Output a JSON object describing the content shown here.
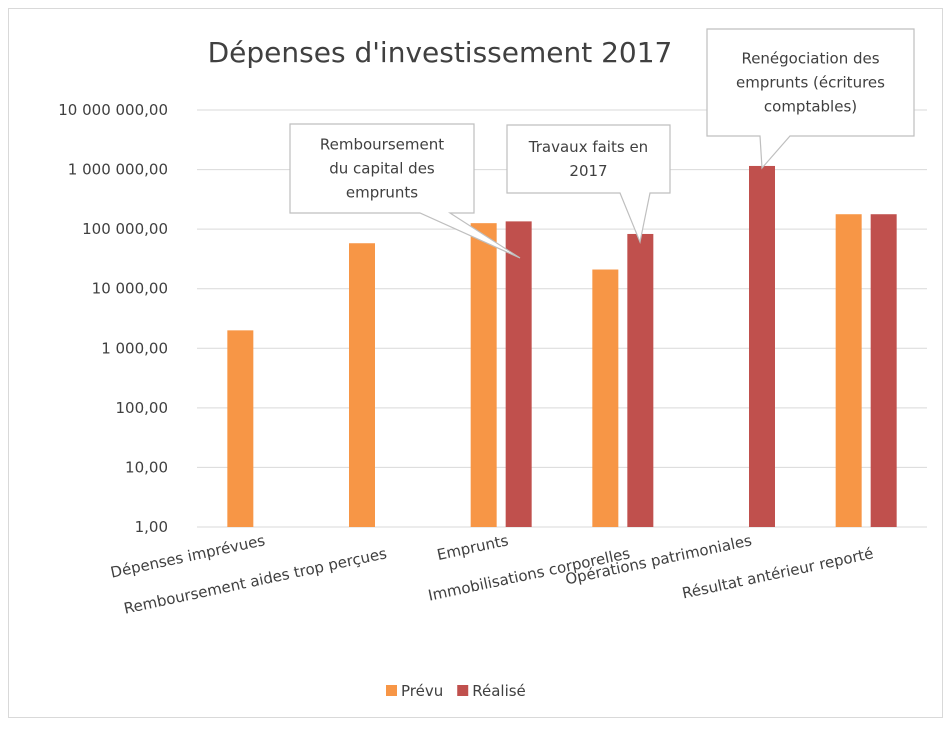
{
  "chart_data": {
    "type": "bar",
    "title": "Dépenses d'investissement 2017",
    "log_scale": true,
    "categories": [
      "Dépenses imprévues",
      "Remboursement aides trop perçues",
      "Emprunts",
      "Immobilisations corporelles",
      "Opérations patrimoniales",
      "Résultat antérieur reporté"
    ],
    "series": [
      {
        "name": "Prévu",
        "color": "#f79646",
        "values": [
          2000,
          58000,
          126000,
          21000,
          null,
          178000
        ]
      },
      {
        "name": "Réalisé",
        "color": "#c0504d",
        "values": [
          null,
          null,
          135000,
          83000,
          1150000,
          178000
        ]
      }
    ],
    "ylim": [
      1,
      10000000
    ],
    "yticks": [
      {
        "value": 1,
        "label": "1,00"
      },
      {
        "value": 10,
        "label": "10,00"
      },
      {
        "value": 100,
        "label": "100,00"
      },
      {
        "value": 1000,
        "label": "1 000,00"
      },
      {
        "value": 10000,
        "label": "10 000,00"
      },
      {
        "value": 100000,
        "label": "100 000,00"
      },
      {
        "value": 1000000,
        "label": "1 000 000,00"
      },
      {
        "value": 10000000,
        "label": "10 000 000,00"
      }
    ],
    "grid": true,
    "legend": "bottom",
    "annotations": [
      {
        "lines": [
          "Remboursement",
          "du capital des",
          "emprunts"
        ]
      },
      {
        "lines": [
          "Travaux faits en",
          "2017"
        ]
      },
      {
        "lines": [
          "Renégociation des",
          "emprunts (écritures",
          "comptables)"
        ]
      }
    ]
  }
}
